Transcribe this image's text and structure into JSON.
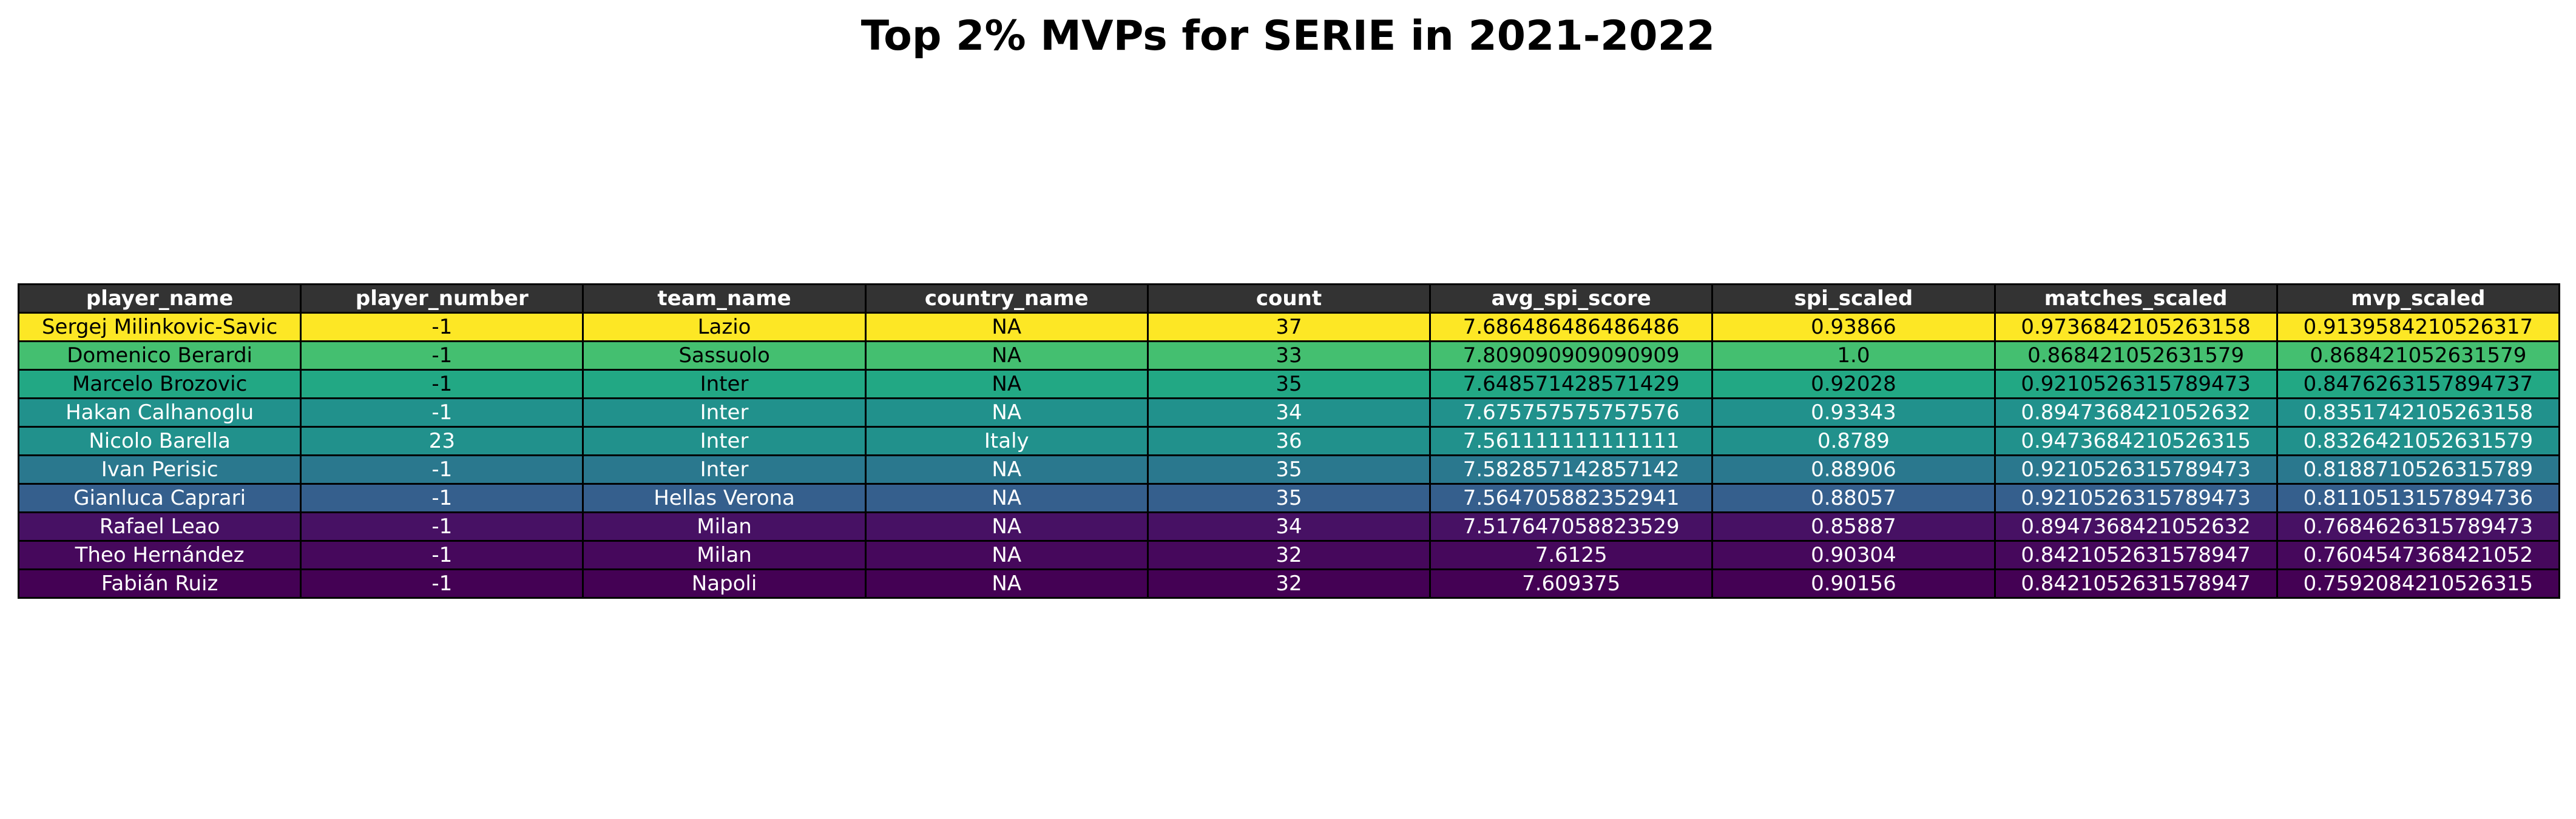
{
  "chart_data": {
    "type": "table",
    "title": "Top 2% MVPs for SERIE in 2021-2022",
    "columns": [
      "player_name",
      "player_number",
      "team_name",
      "country_name",
      "count",
      "avg_spi_score",
      "spi_scaled",
      "matches_scaled",
      "mvp_scaled"
    ],
    "rows": [
      {
        "cells": [
          "Sergej Milinkovic-Savic",
          "-1",
          "Lazio",
          "NA",
          "37",
          "7.686486486486486",
          "0.93866",
          "0.9736842105263158",
          "0.9139584210526317"
        ],
        "color": "#fde725",
        "text_color": "#000000"
      },
      {
        "cells": [
          "Domenico Berardi",
          "-1",
          "Sassuolo",
          "NA",
          "33",
          "7.809090909090909",
          "1.0",
          "0.868421052631579",
          "0.868421052631579"
        ],
        "color": "#44bf70",
        "text_color": "#000000"
      },
      {
        "cells": [
          "Marcelo Brozovic",
          "-1",
          "Inter",
          "NA",
          "35",
          "7.648571428571429",
          "0.92028",
          "0.9210526315789473",
          "0.8476263157894737"
        ],
        "color": "#22a884",
        "text_color": "#000000"
      },
      {
        "cells": [
          "Hakan Calhanoglu",
          "-1",
          "Inter",
          "NA",
          "34",
          "7.675757575757576",
          "0.93343",
          "0.8947368421052632",
          "0.8351742105263158"
        ],
        "color": "#21918c",
        "text_color": "#ffffff"
      },
      {
        "cells": [
          "Nicolo Barella",
          "23",
          "Inter",
          "Italy",
          "36",
          "7.561111111111111",
          "0.8789",
          "0.9473684210526315",
          "0.8326421052631579"
        ],
        "color": "#21918c",
        "text_color": "#ffffff"
      },
      {
        "cells": [
          "Ivan Perisic",
          "-1",
          "Inter",
          "NA",
          "35",
          "7.582857142857142",
          "0.88906",
          "0.9210526315789473",
          "0.8188710526315789"
        ],
        "color": "#2a788e",
        "text_color": "#ffffff"
      },
      {
        "cells": [
          "Gianluca Caprari",
          "-1",
          "Hellas Verona",
          "NA",
          "35",
          "7.564705882352941",
          "0.88057",
          "0.9210526315789473",
          "0.8110513157894736"
        ],
        "color": "#355f8d",
        "text_color": "#ffffff"
      },
      {
        "cells": [
          "Rafael Leao",
          "-1",
          "Milan",
          "NA",
          "34",
          "7.517647058823529",
          "0.85887",
          "0.8947368421052632",
          "0.7684626315789473"
        ],
        "color": "#471164",
        "text_color": "#ffffff"
      },
      {
        "cells": [
          "Theo Hernández",
          "-1",
          "Milan",
          "NA",
          "32",
          "7.6125",
          "0.90304",
          "0.8421052631578947",
          "0.7604547368421052"
        ],
        "color": "#46085c",
        "text_color": "#ffffff"
      },
      {
        "cells": [
          "Fabián Ruiz",
          "-1",
          "Napoli",
          "NA",
          "32",
          "7.609375",
          "0.90156",
          "0.8421052631578947",
          "0.7592084210526315"
        ],
        "color": "#440154",
        "text_color": "#ffffff"
      }
    ],
    "header_color": "#333333",
    "header_text_color": "#ffffff",
    "grid": true
  }
}
